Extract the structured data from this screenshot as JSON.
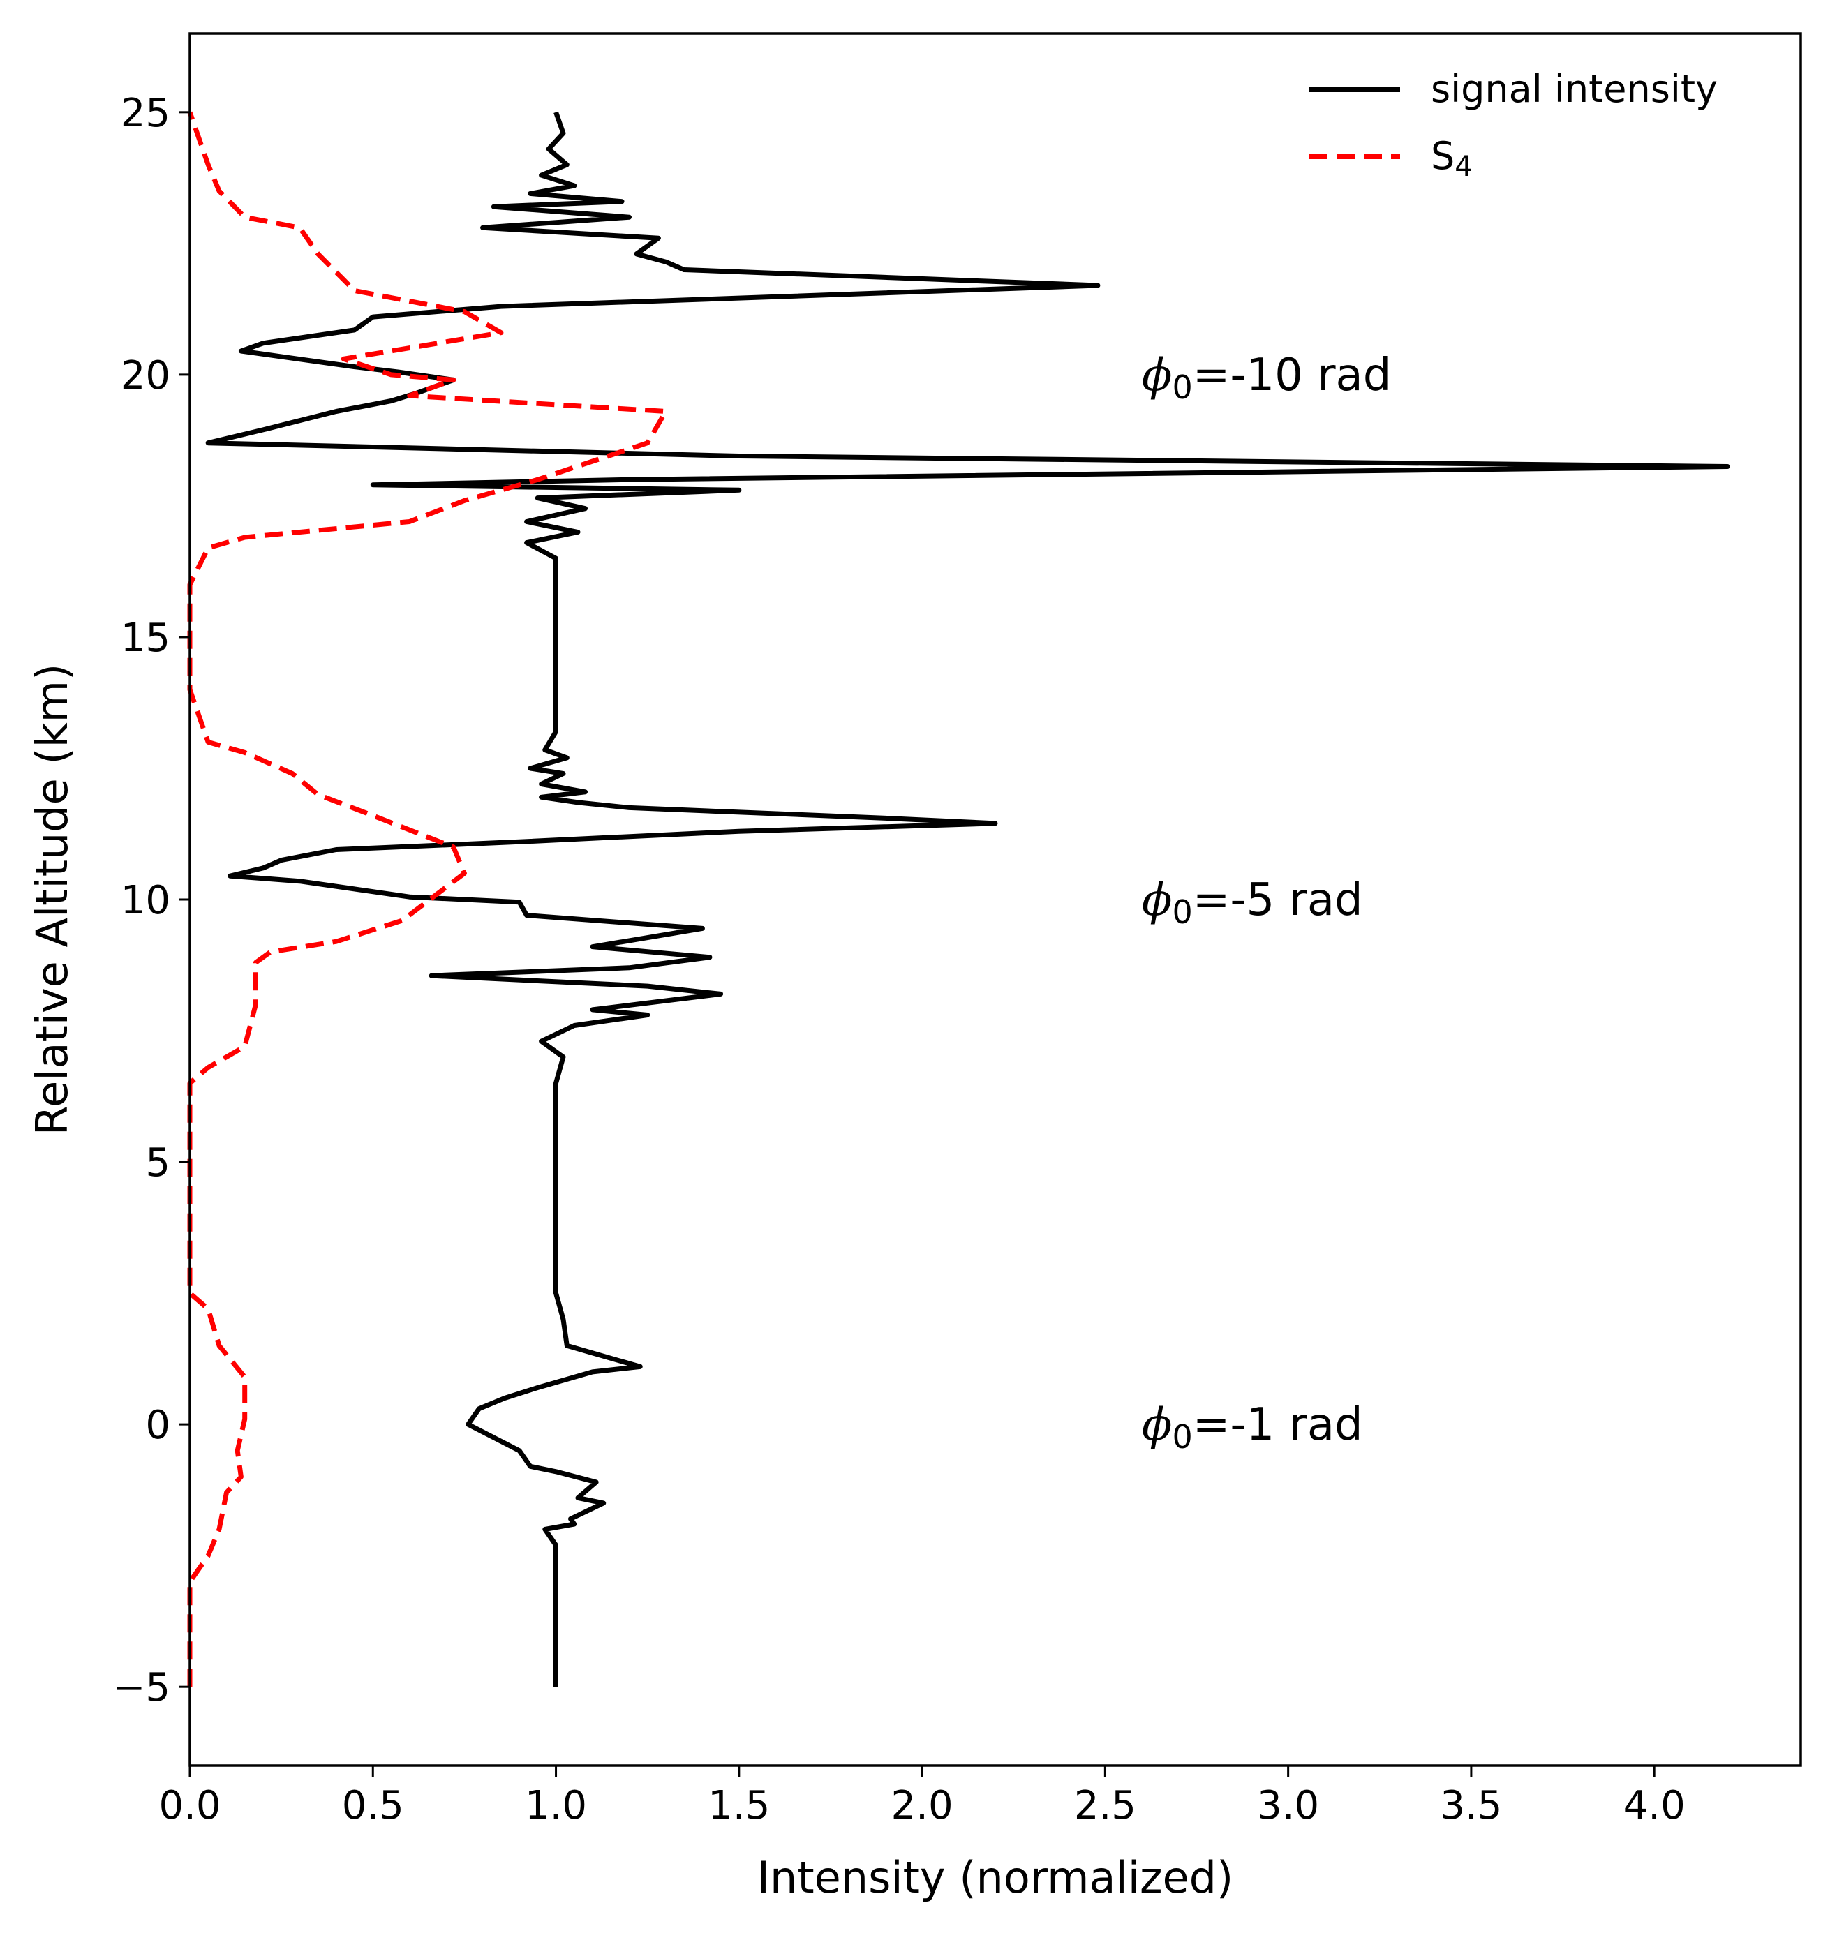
{
  "chart_data": {
    "type": "line",
    "title": "",
    "xlabel": "Intensity (normalized)",
    "ylabel": "Relative Altitude (km)",
    "xlim": [
      0.0,
      4.4
    ],
    "ylim": [
      -6.5,
      26.5
    ],
    "x_ticks": [
      0.0,
      0.5,
      1.0,
      1.5,
      2.0,
      2.5,
      3.0,
      3.5,
      4.0
    ],
    "x_tick_labels": [
      "0.0",
      "0.5",
      "1.0",
      "1.5",
      "2.0",
      "2.5",
      "3.0",
      "3.5",
      "4.0"
    ],
    "y_ticks": [
      -5,
      0,
      5,
      10,
      15,
      20,
      25
    ],
    "y_tick_labels": [
      "−5",
      "0",
      "5",
      "10",
      "15",
      "20",
      "25"
    ],
    "grid": false,
    "legend_position": "top-right",
    "series": [
      {
        "name": "signal intensity",
        "color": "#000000",
        "style": "solid",
        "points": [
          [
            1.0,
            -5.0
          ],
          [
            1.0,
            -3.0
          ],
          [
            1.0,
            -2.3
          ],
          [
            0.97,
            -2.0
          ],
          [
            1.05,
            -1.9
          ],
          [
            1.04,
            -1.8
          ],
          [
            1.13,
            -1.5
          ],
          [
            1.06,
            -1.4
          ],
          [
            1.11,
            -1.1
          ],
          [
            1.0,
            -0.9
          ],
          [
            0.93,
            -0.8
          ],
          [
            0.9,
            -0.5
          ],
          [
            0.76,
            0.0
          ],
          [
            0.79,
            0.3
          ],
          [
            0.86,
            0.5
          ],
          [
            0.95,
            0.7
          ],
          [
            1.1,
            1.0
          ],
          [
            1.23,
            1.1
          ],
          [
            1.03,
            1.5
          ],
          [
            1.02,
            2.0
          ],
          [
            1.0,
            2.5
          ],
          [
            1.0,
            5.0
          ],
          [
            1.0,
            6.5
          ],
          [
            1.02,
            7.0
          ],
          [
            0.96,
            7.3
          ],
          [
            1.05,
            7.6
          ],
          [
            1.25,
            7.8
          ],
          [
            1.1,
            7.9
          ],
          [
            1.45,
            8.2
          ],
          [
            1.25,
            8.35
          ],
          [
            0.66,
            8.55
          ],
          [
            1.2,
            8.7
          ],
          [
            1.42,
            8.9
          ],
          [
            1.1,
            9.1
          ],
          [
            1.4,
            9.45
          ],
          [
            0.92,
            9.7
          ],
          [
            0.9,
            9.95
          ],
          [
            0.6,
            10.05
          ],
          [
            0.3,
            10.35
          ],
          [
            0.11,
            10.45
          ],
          [
            0.2,
            10.6
          ],
          [
            0.25,
            10.75
          ],
          [
            0.4,
            10.95
          ],
          [
            0.9,
            11.1
          ],
          [
            1.5,
            11.3
          ],
          [
            2.2,
            11.45
          ],
          [
            1.9,
            11.55
          ],
          [
            1.2,
            11.75
          ],
          [
            1.06,
            11.85
          ],
          [
            0.96,
            11.95
          ],
          [
            1.08,
            12.05
          ],
          [
            0.96,
            12.2
          ],
          [
            1.02,
            12.4
          ],
          [
            0.93,
            12.5
          ],
          [
            1.03,
            12.7
          ],
          [
            0.97,
            12.85
          ],
          [
            1.0,
            13.2
          ],
          [
            1.0,
            15.0
          ],
          [
            1.0,
            16.5
          ],
          [
            0.92,
            16.8
          ],
          [
            1.06,
            17.0
          ],
          [
            0.92,
            17.2
          ],
          [
            1.08,
            17.45
          ],
          [
            0.95,
            17.65
          ],
          [
            1.5,
            17.8
          ],
          [
            0.5,
            17.9
          ],
          [
            1.2,
            18.0
          ],
          [
            4.2,
            18.25
          ],
          [
            1.5,
            18.45
          ],
          [
            0.05,
            18.7
          ],
          [
            0.2,
            18.95
          ],
          [
            0.4,
            19.3
          ],
          [
            0.55,
            19.5
          ],
          [
            0.62,
            19.65
          ],
          [
            0.72,
            19.9
          ],
          [
            0.57,
            20.05
          ],
          [
            0.45,
            20.15
          ],
          [
            0.14,
            20.45
          ],
          [
            0.2,
            20.6
          ],
          [
            0.45,
            20.85
          ],
          [
            0.5,
            21.1
          ],
          [
            0.85,
            21.3
          ],
          [
            2.48,
            21.7
          ],
          [
            1.35,
            22.0
          ],
          [
            1.3,
            22.15
          ],
          [
            1.22,
            22.3
          ],
          [
            1.28,
            22.6
          ],
          [
            0.8,
            22.8
          ],
          [
            1.2,
            23.0
          ],
          [
            0.83,
            23.2
          ],
          [
            1.18,
            23.3
          ],
          [
            0.93,
            23.45
          ],
          [
            1.05,
            23.6
          ],
          [
            0.96,
            23.8
          ],
          [
            1.03,
            24.0
          ],
          [
            0.98,
            24.3
          ],
          [
            1.02,
            24.6
          ],
          [
            1.0,
            25.0
          ]
        ]
      },
      {
        "name": "S₄",
        "color": "#ff0000",
        "style": "dashed",
        "points": [
          [
            0.0,
            -5.0
          ],
          [
            0.0,
            -3.0
          ],
          [
            0.05,
            -2.5
          ],
          [
            0.08,
            -2.0
          ],
          [
            0.1,
            -1.3
          ],
          [
            0.14,
            -1.0
          ],
          [
            0.13,
            -0.5
          ],
          [
            0.15,
            0.1
          ],
          [
            0.15,
            0.9
          ],
          [
            0.08,
            1.5
          ],
          [
            0.05,
            2.2
          ],
          [
            0.0,
            2.5
          ],
          [
            0.0,
            6.5
          ],
          [
            0.05,
            6.8
          ],
          [
            0.15,
            7.2
          ],
          [
            0.18,
            8.0
          ],
          [
            0.18,
            8.8
          ],
          [
            0.22,
            9.0
          ],
          [
            0.4,
            9.2
          ],
          [
            0.58,
            9.6
          ],
          [
            0.75,
            10.5
          ],
          [
            0.72,
            11.0
          ],
          [
            0.5,
            11.6
          ],
          [
            0.35,
            12.0
          ],
          [
            0.28,
            12.4
          ],
          [
            0.15,
            12.8
          ],
          [
            0.05,
            13.0
          ],
          [
            0.0,
            14.0
          ],
          [
            0.0,
            16.0
          ],
          [
            0.05,
            16.7
          ],
          [
            0.15,
            16.9
          ],
          [
            0.6,
            17.2
          ],
          [
            0.75,
            17.6
          ],
          [
            0.95,
            18.0
          ],
          [
            1.25,
            18.7
          ],
          [
            1.3,
            19.3
          ],
          [
            0.6,
            19.6
          ],
          [
            0.72,
            19.9
          ],
          [
            0.55,
            20.0
          ],
          [
            0.42,
            20.3
          ],
          [
            0.85,
            20.8
          ],
          [
            0.75,
            21.2
          ],
          [
            0.45,
            21.6
          ],
          [
            0.35,
            22.3
          ],
          [
            0.3,
            22.8
          ],
          [
            0.15,
            23.0
          ],
          [
            0.08,
            23.5
          ],
          [
            0.05,
            24.0
          ],
          [
            0.0,
            25.0
          ]
        ]
      }
    ],
    "annotations": [
      {
        "symbol": "ϕ",
        "sub": "0",
        "text": "=-10 rad",
        "x": 2.6,
        "y": 20.0
      },
      {
        "symbol": "ϕ",
        "sub": "0",
        "text": "=-5 rad",
        "x": 2.6,
        "y": 10.0
      },
      {
        "symbol": "ϕ",
        "sub": "0",
        "text": "=-1 rad",
        "x": 2.6,
        "y": 0.0
      }
    ]
  }
}
